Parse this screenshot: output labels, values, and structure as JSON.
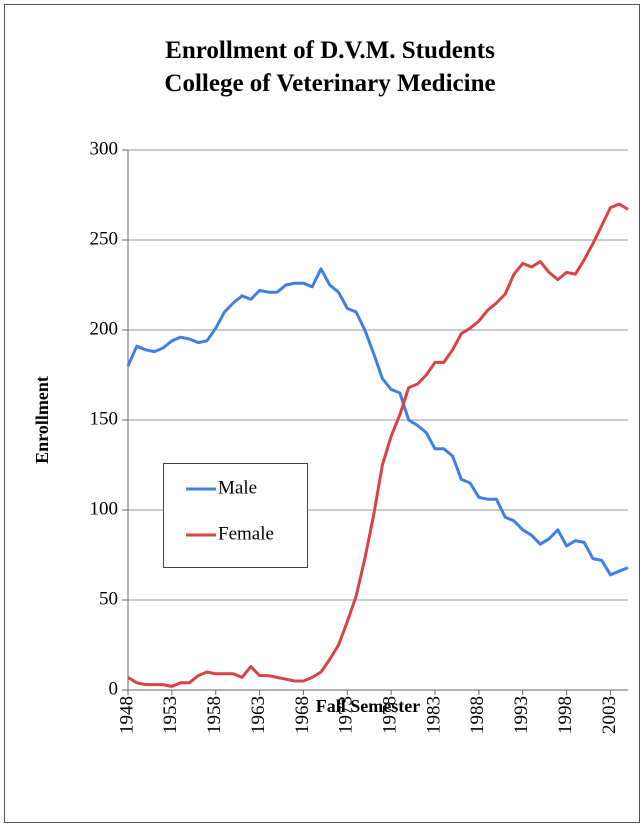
{
  "chart_data": {
    "type": "line",
    "title": "Enrollment of D.V.M. Students",
    "subtitle": "College of Veterinary Medicine",
    "x_label": "Fall Semester",
    "y_label": "Enrollment",
    "x": [
      1948,
      1949,
      1950,
      1951,
      1952,
      1953,
      1954,
      1955,
      1956,
      1957,
      1958,
      1959,
      1960,
      1961,
      1962,
      1963,
      1964,
      1965,
      1966,
      1967,
      1968,
      1969,
      1970,
      1971,
      1972,
      1973,
      1974,
      1975,
      1976,
      1977,
      1978,
      1979,
      1980,
      1981,
      1982,
      1983,
      1984,
      1985,
      1986,
      1987,
      1988,
      1989,
      1990,
      1991,
      1992,
      1993,
      1994,
      1995,
      1996,
      1997,
      1998,
      1999,
      2000,
      2001,
      2002,
      2003,
      2004,
      2005
    ],
    "series": [
      {
        "name": "Male",
        "color": "#3f7fe8",
        "values": [
          180,
          191,
          189,
          188,
          190,
          194,
          196,
          195,
          193,
          194,
          201,
          210,
          215,
          219,
          217,
          222,
          221,
          221,
          225,
          226,
          226,
          224,
          234,
          225,
          221,
          212,
          210,
          200,
          187,
          173,
          167,
          165,
          150,
          147,
          143,
          134,
          134,
          130,
          117,
          115,
          107,
          106,
          106,
          96,
          94,
          89,
          86,
          81,
          84,
          89,
          80,
          83,
          82,
          73,
          72,
          64,
          66,
          68
        ]
      },
      {
        "name": "Female",
        "color": "#d94343",
        "values": [
          7,
          4,
          3,
          3,
          3,
          2,
          4,
          4,
          8,
          10,
          9,
          9,
          9,
          7,
          13,
          8,
          8,
          7,
          6,
          5,
          5,
          7,
          10,
          17,
          25,
          38,
          52,
          73,
          97,
          125,
          141,
          153,
          168,
          170,
          175,
          182,
          182,
          189,
          198,
          201,
          205,
          211,
          215,
          220,
          231,
          237,
          235,
          238,
          232,
          228,
          232,
          231,
          239,
          248,
          258,
          268,
          270,
          267
        ]
      }
    ],
    "xlim": [
      1948,
      2005
    ],
    "xticks": [
      1948,
      1953,
      1958,
      1963,
      1968,
      1973,
      1978,
      1983,
      1988,
      1993,
      1998,
      2003
    ],
    "ylim": [
      0,
      300
    ],
    "yticks": [
      0,
      50,
      100,
      150,
      200,
      250,
      300
    ],
    "grid": true,
    "legend": "left"
  }
}
